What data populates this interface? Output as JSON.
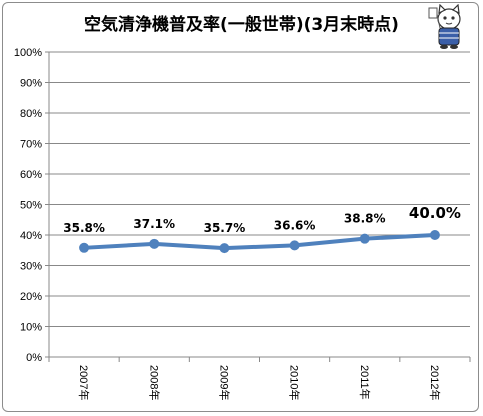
{
  "title": "空気清浄機普及率(一般世帯)(3月末時点)",
  "mascot": {
    "icon": "cat-mascot-icon"
  },
  "colors": {
    "line": "#4f81bd",
    "grid": "#888888",
    "axis": "#888888"
  },
  "chart_data": {
    "type": "line",
    "categories": [
      "2007年",
      "2008年",
      "2009年",
      "2010年",
      "2011年",
      "2012年"
    ],
    "series": [
      {
        "values": [
          35.8,
          37.1,
          35.7,
          36.6,
          38.8,
          40.0
        ]
      }
    ],
    "data_labels": [
      "35.8%",
      "37.1%",
      "35.7%",
      "36.6%",
      "38.8%",
      "40.0%"
    ],
    "y_ticks": [
      "0%",
      "10%",
      "20%",
      "30%",
      "40%",
      "50%",
      "60%",
      "70%",
      "80%",
      "90%",
      "100%"
    ],
    "ylim": [
      0,
      100
    ],
    "grid": true,
    "xlabel": "",
    "ylabel": ""
  }
}
